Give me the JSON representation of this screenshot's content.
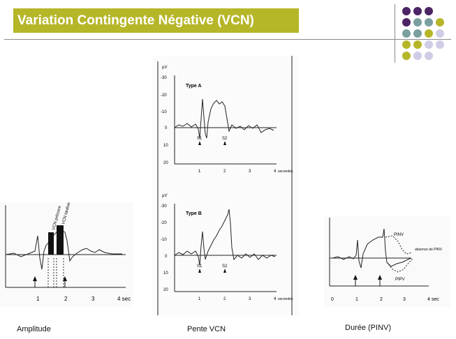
{
  "slide_title": "Variation Contingente Négative (VCN)",
  "colors": {
    "title_bg": "#b6b629",
    "title_text": "#ffffff",
    "dot_purple": "#4b2566",
    "dot_teal": "#7b9fa0",
    "dot_olive": "#b6b629",
    "dot_lavender": "#cfcde6"
  },
  "captions": {
    "left": "Amplitude",
    "center": "Pente VCN",
    "right": "Durée (PINV)"
  },
  "panel_amplitude": {
    "ticks_x": [
      "1",
      "2",
      "3",
      "4 sec"
    ],
    "bar_labels": [
      "VCN précoce",
      "VCN tardive"
    ]
  },
  "panel_type_a": {
    "unit": "µV",
    "type_label": "Type A",
    "y_ticks": [
      "-30",
      "-20",
      "-10",
      "0",
      "10",
      "20"
    ],
    "x_ticks": [
      "1",
      "2",
      "3",
      "4"
    ],
    "x_unit": "secondes",
    "markers": [
      "S1",
      "S2"
    ]
  },
  "panel_type_b": {
    "unit": "µV",
    "type_label": "Type B",
    "y_ticks": [
      "-30",
      "-20",
      "-10",
      "0",
      "10",
      "20"
    ],
    "x_ticks": [
      "1",
      "2",
      "3",
      "4"
    ],
    "x_unit": "secondes",
    "markers": [
      "S1",
      "S2"
    ]
  },
  "panel_duration": {
    "labels": [
      "PINV",
      "absence de PINV",
      "PIPV"
    ],
    "x_ticks": [
      "0",
      "1",
      "2",
      "3",
      "4 sec"
    ]
  }
}
